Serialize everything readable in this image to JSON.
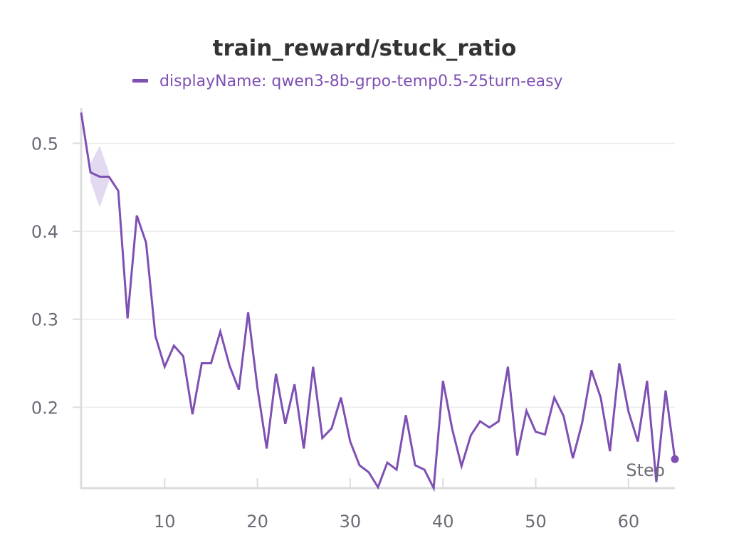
{
  "chart_data": {
    "type": "line",
    "title": "train_reward/stuck_ratio",
    "xlabel": "Step",
    "ylabel": "",
    "legend": {
      "placement": "top-center"
    },
    "grid": true,
    "xlim": [
      1,
      65
    ],
    "ylim": [
      0.108,
      0.54
    ],
    "xticks": [
      10,
      20,
      30,
      40,
      50,
      60
    ],
    "yticks": [
      0.2,
      0.3,
      0.4,
      0.5
    ],
    "series": [
      {
        "name": "displayName: qwen3-8b-grpo-temp0.5-25turn-easy",
        "color": "#7e50b4",
        "band_color": "#e3d9f0",
        "x": [
          1,
          2,
          3,
          4,
          5,
          6,
          7,
          8,
          9,
          10,
          11,
          12,
          13,
          14,
          15,
          16,
          17,
          18,
          19,
          20,
          21,
          22,
          23,
          24,
          25,
          26,
          27,
          28,
          29,
          30,
          31,
          32,
          33,
          34,
          35,
          36,
          37,
          38,
          39,
          40,
          41,
          42,
          43,
          44,
          45,
          46,
          47,
          48,
          49,
          50,
          51,
          52,
          53,
          54,
          55,
          56,
          57,
          58,
          59,
          60,
          61,
          62,
          63,
          64,
          65
        ],
        "values": [
          0.535,
          0.467,
          0.462,
          0.462,
          0.446,
          0.301,
          0.418,
          0.387,
          0.281,
          0.246,
          0.27,
          0.258,
          0.192,
          0.25,
          0.25,
          0.286,
          0.247,
          0.22,
          0.308,
          0.222,
          0.153,
          0.238,
          0.181,
          0.226,
          0.153,
          0.246,
          0.165,
          0.176,
          0.211,
          0.161,
          0.134,
          0.126,
          0.109,
          0.137,
          0.129,
          0.191,
          0.134,
          0.129,
          0.108,
          0.23,
          0.175,
          0.133,
          0.168,
          0.184,
          0.177,
          0.184,
          0.246,
          0.145,
          0.196,
          0.172,
          0.169,
          0.211,
          0.19,
          0.142,
          0.182,
          0.242,
          0.211,
          0.15,
          0.25,
          0.195,
          0.161,
          0.23,
          0.115,
          0.219,
          0.141
        ],
        "band": {
          "x": [
            2,
            3,
            4
          ],
          "upper": [
            0.477,
            0.497,
            0.467
          ],
          "lower": [
            0.457,
            0.427,
            0.457
          ]
        }
      }
    ]
  }
}
